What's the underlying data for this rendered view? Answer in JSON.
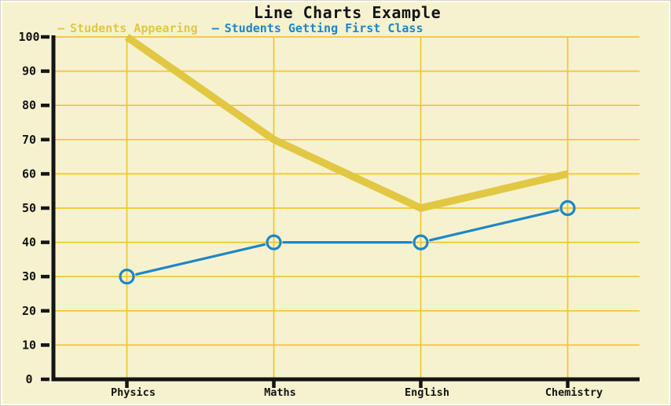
{
  "title": "Line Charts Example",
  "colors": {
    "background": "#f6f2d0",
    "grid": "#f4c430",
    "axis": "#141414",
    "text": "#141414",
    "series_appearing": "#e2c743",
    "series_first_class": "#1e86c6"
  },
  "legend": [
    {
      "dash": "—",
      "label": "Students Appearing",
      "color": "#e2c743"
    },
    {
      "dash": "—",
      "label": "Students Getting First Class",
      "color": "#1e86c6"
    }
  ],
  "chart_data": {
    "type": "line",
    "title": "Line Charts Example",
    "xlabel": "",
    "ylabel": "",
    "categories": [
      "Physics",
      "Maths",
      "English",
      "Chemistry"
    ],
    "series": [
      {
        "name": "Students Appearing",
        "values": [
          100,
          70,
          50,
          60
        ],
        "color": "#e2c743",
        "stroke_width": 9.5,
        "marker": "none"
      },
      {
        "name": "Students Getting First Class",
        "values": [
          30,
          40,
          40,
          50
        ],
        "color": "#1e86c6",
        "stroke_width": 3.2,
        "marker": "open-circle"
      }
    ],
    "y_ticks": [
      0,
      10,
      20,
      30,
      40,
      50,
      60,
      70,
      80,
      90,
      100
    ],
    "ylim": [
      0,
      100
    ],
    "grid": true,
    "legend_position": "top-left"
  }
}
